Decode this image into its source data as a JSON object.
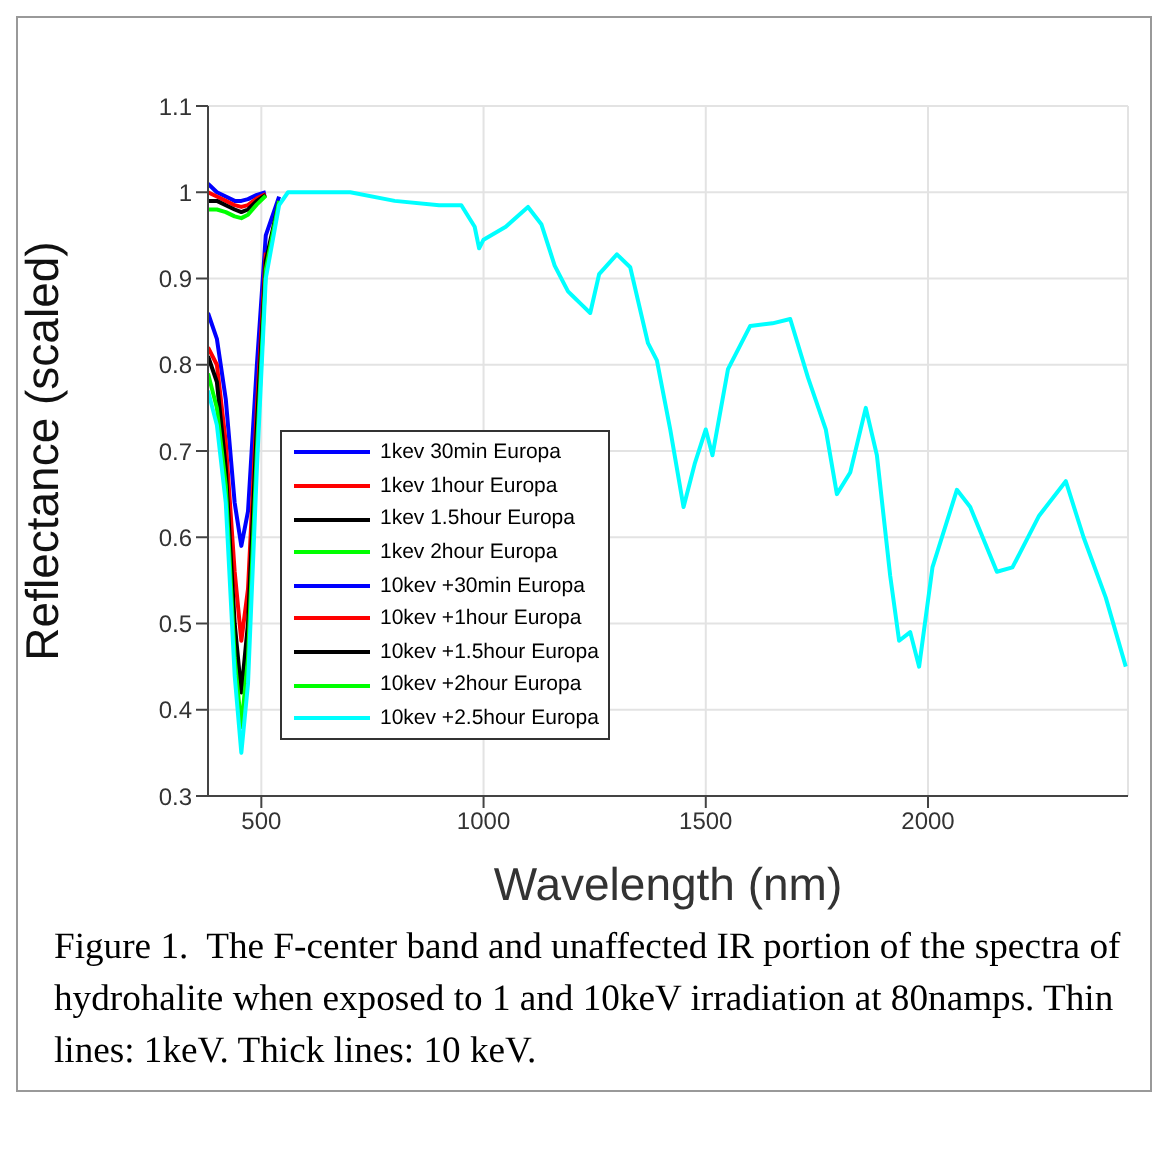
{
  "chart_data": {
    "type": "line",
    "xlabel": "Wavelength (nm)",
    "ylabel": "Reflectance (scaled)",
    "x": [
      380,
      400,
      420,
      440,
      455,
      470,
      490,
      510,
      540,
      560,
      600,
      700,
      800,
      900,
      950,
      980,
      990,
      1000,
      1050,
      1100,
      1130,
      1160,
      1190,
      1200,
      1220,
      1240,
      1260,
      1300,
      1330,
      1370,
      1390,
      1420,
      1450,
      1475,
      1500,
      1515,
      1550,
      1600,
      1650,
      1690,
      1730,
      1770,
      1795,
      1825,
      1860,
      1885,
      1915,
      1935,
      1960,
      1980,
      2010,
      2065,
      2095,
      2155,
      2190,
      2250,
      2310,
      2350,
      2400,
      2445
    ],
    "series": [
      {
        "name": "1kev 30min Europa",
        "color": "#0000ff",
        "values": [
          1.01,
          1.0,
          0.995,
          0.99,
          0.99,
          0.992,
          0.997,
          1.0,
          null,
          null,
          null,
          null,
          null,
          null,
          null,
          null,
          null,
          null,
          null,
          null,
          null,
          null,
          null,
          null,
          null,
          null,
          null,
          null,
          null,
          null,
          null,
          null,
          null,
          null,
          null,
          null,
          null,
          null,
          null,
          null,
          null,
          null,
          null,
          null,
          null,
          null,
          null,
          null,
          null,
          null,
          null,
          null,
          null,
          null,
          null,
          null,
          null,
          null,
          null,
          null
        ]
      },
      {
        "name": "1kev 1hour Europa",
        "color": "#ff0000",
        "values": [
          1.0,
          0.995,
          0.99,
          0.985,
          0.983,
          0.985,
          0.993,
          0.998,
          null,
          null,
          null,
          null,
          null,
          null,
          null,
          null,
          null,
          null,
          null,
          null,
          null,
          null,
          null,
          null,
          null,
          null,
          null,
          null,
          null,
          null,
          null,
          null,
          null,
          null,
          null,
          null,
          null,
          null,
          null,
          null,
          null,
          null,
          null,
          null,
          null,
          null,
          null,
          null,
          null,
          null,
          null,
          null,
          null,
          null,
          null,
          null,
          null,
          null,
          null,
          null
        ]
      },
      {
        "name": "1kev 1.5hour Europa",
        "color": "#000000",
        "values": [
          0.99,
          0.99,
          0.985,
          0.98,
          0.977,
          0.98,
          0.99,
          0.997,
          null,
          null,
          null,
          null,
          null,
          null,
          null,
          null,
          null,
          null,
          null,
          null,
          null,
          null,
          null,
          null,
          null,
          null,
          null,
          null,
          null,
          null,
          null,
          null,
          null,
          null,
          null,
          null,
          null,
          null,
          null,
          null,
          null,
          null,
          null,
          null,
          null,
          null,
          null,
          null,
          null,
          null,
          null,
          null,
          null,
          null,
          null,
          null,
          null,
          null,
          null,
          null
        ]
      },
      {
        "name": "1kev 2hour Europa",
        "color": "#00ff00",
        "values": [
          0.98,
          0.98,
          0.977,
          0.972,
          0.97,
          0.974,
          0.986,
          0.996,
          null,
          null,
          null,
          null,
          null,
          null,
          null,
          null,
          null,
          null,
          null,
          null,
          null,
          null,
          null,
          null,
          null,
          null,
          null,
          null,
          null,
          null,
          null,
          null,
          null,
          null,
          null,
          null,
          null,
          null,
          null,
          null,
          null,
          null,
          null,
          null,
          null,
          null,
          null,
          null,
          null,
          null,
          null,
          null,
          null,
          null,
          null,
          null,
          null,
          null,
          null,
          null
        ]
      },
      {
        "name": "10kev +30min Europa",
        "color": "#0000ff",
        "values": [
          0.86,
          0.83,
          0.76,
          0.64,
          0.59,
          0.63,
          0.8,
          0.95,
          0.995,
          null,
          null,
          null,
          null,
          null,
          null,
          null,
          null,
          null,
          null,
          null,
          null,
          null,
          null,
          null,
          null,
          null,
          null,
          null,
          null,
          null,
          null,
          null,
          null,
          null,
          null,
          null,
          null,
          null,
          null,
          null,
          null,
          null,
          null,
          null,
          null,
          null,
          null,
          null,
          null,
          null,
          null,
          null,
          null,
          null,
          null,
          null,
          null,
          null,
          null,
          null
        ]
      },
      {
        "name": "10kev +1hour Europa",
        "color": "#ff0000",
        "values": [
          0.82,
          0.8,
          0.71,
          0.56,
          0.48,
          0.54,
          0.75,
          0.93,
          null,
          null,
          null,
          null,
          null,
          null,
          null,
          null,
          null,
          null,
          null,
          null,
          null,
          null,
          null,
          null,
          null,
          null,
          null,
          null,
          null,
          null,
          null,
          null,
          null,
          null,
          null,
          null,
          null,
          null,
          null,
          null,
          null,
          null,
          null,
          null,
          null,
          null,
          null,
          null,
          null,
          null,
          null,
          null,
          null,
          null,
          null,
          null,
          null,
          null,
          null,
          null
        ]
      },
      {
        "name": "10kev +1.5hour Europa",
        "color": "#000000",
        "values": [
          0.81,
          0.78,
          0.68,
          0.5,
          0.42,
          0.5,
          0.73,
          0.92,
          0.99,
          null,
          null,
          null,
          null,
          null,
          null,
          null,
          null,
          null,
          null,
          null,
          null,
          null,
          null,
          null,
          null,
          null,
          null,
          null,
          null,
          null,
          null,
          null,
          null,
          null,
          null,
          null,
          null,
          null,
          null,
          null,
          null,
          null,
          null,
          null,
          null,
          null,
          null,
          null,
          null,
          null,
          null,
          null,
          null,
          null,
          null,
          null,
          null,
          null,
          null,
          null
        ]
      },
      {
        "name": "10kev +2hour Europa",
        "color": "#00ff00",
        "values": [
          0.79,
          0.75,
          0.66,
          0.46,
          0.38,
          0.46,
          0.7,
          0.91,
          0.99,
          null,
          null,
          null,
          null,
          null,
          null,
          null,
          null,
          null,
          null,
          null,
          null,
          null,
          null,
          null,
          null,
          null,
          null,
          null,
          null,
          null,
          null,
          null,
          null,
          null,
          null,
          null,
          null,
          null,
          null,
          null,
          null,
          null,
          null,
          null,
          null,
          null,
          null,
          null,
          null,
          null,
          null,
          null,
          null,
          null,
          null,
          null,
          null,
          null,
          null,
          null
        ]
      },
      {
        "name": "10kev +2.5hour Europa",
        "color": "#00ffff",
        "values": [
          0.77,
          0.73,
          0.64,
          0.44,
          0.35,
          0.43,
          0.68,
          0.9,
          0.985,
          1.0,
          1.0,
          1.0,
          0.99,
          0.985,
          0.985,
          0.96,
          0.935,
          0.945,
          0.96,
          0.983,
          0.963,
          0.915,
          0.885,
          0.88,
          0.87,
          0.86,
          0.905,
          0.928,
          0.913,
          0.825,
          0.805,
          0.725,
          0.635,
          0.685,
          0.725,
          0.695,
          0.795,
          0.845,
          0.848,
          0.853,
          0.785,
          0.725,
          0.65,
          0.675,
          0.75,
          0.695,
          0.555,
          0.48,
          0.49,
          0.45,
          0.565,
          0.655,
          0.635,
          0.56,
          0.565,
          0.625,
          0.665,
          0.6,
          0.53,
          0.45
        ]
      }
    ],
    "xlim": [
      380,
      2450
    ],
    "xticks": [
      500,
      1000,
      1500,
      2000
    ],
    "ylim": [
      0.3,
      1.1
    ],
    "yticks": [
      0.3,
      0.4,
      0.5,
      0.6,
      0.7,
      0.8,
      0.9,
      1,
      1.1
    ],
    "grid": true,
    "legend": "center left",
    "marker": "none",
    "line_style": "solid",
    "annotations": [
      "Figure 1.  The F-center band and unaffected IR portion of the spectra of hydrohalite when exposed to 1 and 10keV irradiation at 80namps. Thin lines: 1keV. Thick lines: 10 keV."
    ]
  }
}
